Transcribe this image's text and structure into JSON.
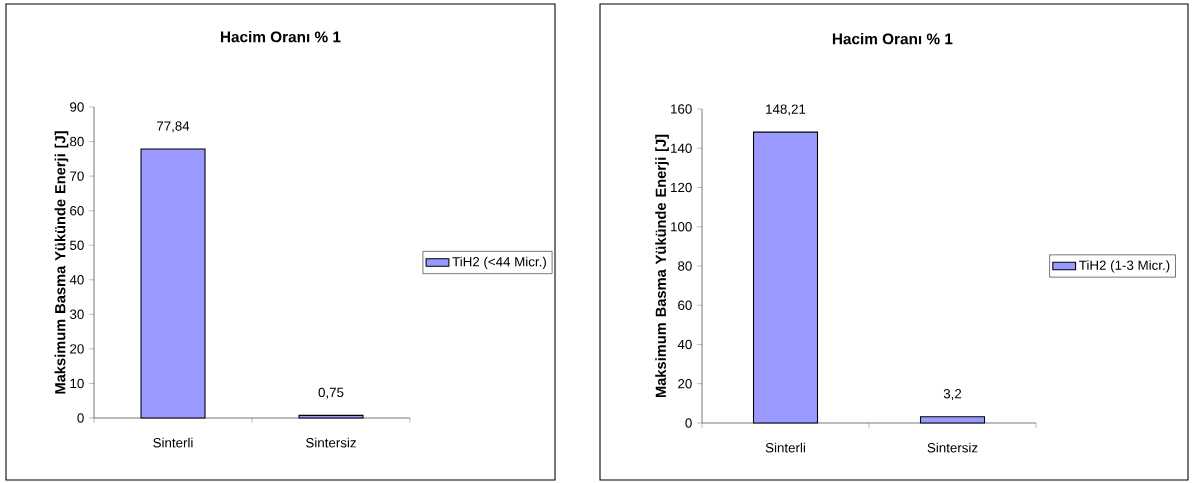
{
  "chart_data": [
    {
      "type": "bar",
      "title": "Hacim Oranı % 1",
      "ylabel": "Maksimum Basma Yükünde Enerji [J]",
      "categories": [
        "Sinterli",
        "Sintersiz"
      ],
      "series": [
        {
          "name": "TiH2 (<44 Micr.)",
          "color": "#9999ff",
          "values": [
            77.84,
            0.75
          ],
          "value_labels": [
            "77,84",
            "0,75"
          ]
        }
      ],
      "ylim": [
        0,
        90
      ],
      "yticks": [
        0,
        10,
        20,
        30,
        40,
        50,
        60,
        70,
        80,
        90
      ],
      "legend": "right"
    },
    {
      "type": "bar",
      "title": "Hacim Oranı % 1",
      "ylabel": "Maksimum Basma Yükünde Enerji [J]",
      "categories": [
        "Sinterli",
        "Sintersiz"
      ],
      "series": [
        {
          "name": "TiH2 (1-3 Micr.)",
          "color": "#9999ff",
          "values": [
            148.21,
            3.2
          ],
          "value_labels": [
            "148,21",
            "3,2"
          ]
        }
      ],
      "ylim": [
        0,
        160
      ],
      "yticks": [
        0,
        20,
        40,
        60,
        80,
        100,
        120,
        140,
        160
      ],
      "legend": "right"
    }
  ]
}
